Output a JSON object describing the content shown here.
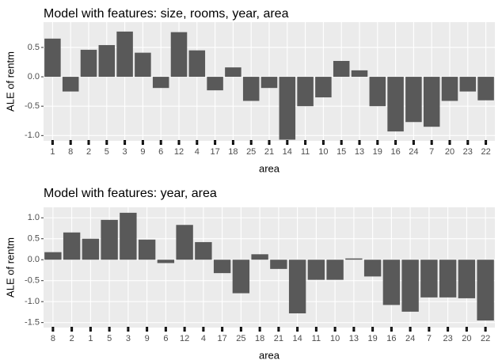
{
  "chart_data": [
    {
      "type": "bar",
      "title": "Model with features: size, rooms, year, area",
      "x_label": "area",
      "y_label": "ALE of rentm",
      "color": "#595959",
      "grid": true,
      "categories": [
        "1",
        "8",
        "2",
        "5",
        "3",
        "9",
        "6",
        "12",
        "4",
        "17",
        "18",
        "25",
        "21",
        "14",
        "11",
        "10",
        "15",
        "13",
        "19",
        "16",
        "24",
        "7",
        "20",
        "23",
        "22"
      ],
      "values": [
        0.65,
        -0.25,
        0.46,
        0.54,
        0.77,
        0.41,
        -0.19,
        0.76,
        0.45,
        -0.23,
        0.16,
        -0.41,
        -0.19,
        -1.07,
        -0.5,
        -0.35,
        0.27,
        0.11,
        -0.5,
        -0.93,
        -0.77,
        -0.85,
        -0.41,
        -0.25,
        -0.4
      ],
      "ylim": [
        -1.09,
        0.93
      ],
      "yticks": [
        {
          "value": -1,
          "label": "-1.0"
        },
        {
          "value": -0.5,
          "label": "-0.5"
        },
        {
          "value": 0,
          "label": "0.0"
        },
        {
          "value": 0.5,
          "label": "0.5"
        }
      ]
    },
    {
      "type": "bar",
      "title": "Model with features: year, area",
      "x_label": "area",
      "y_label": "ALE of rentm",
      "color": "#595959",
      "grid": true,
      "categories": [
        "8",
        "2",
        "1",
        "5",
        "3",
        "9",
        "6",
        "12",
        "4",
        "17",
        "25",
        "18",
        "21",
        "14",
        "11",
        "10",
        "13",
        "19",
        "16",
        "24",
        "7",
        "23",
        "20",
        "22"
      ],
      "values": [
        0.18,
        0.65,
        0.5,
        0.95,
        1.12,
        0.48,
        -0.08,
        0.83,
        0.42,
        -0.32,
        -0.8,
        0.13,
        -0.22,
        -1.28,
        -0.48,
        -0.48,
        0.03,
        -0.4,
        -1.08,
        -1.24,
        -0.9,
        -0.9,
        -0.92,
        -1.45
      ],
      "ylim": [
        -1.62,
        1.25
      ],
      "yticks": [
        {
          "value": -1.5,
          "label": "-1.5"
        },
        {
          "value": -1,
          "label": "-1.0"
        },
        {
          "value": -0.5,
          "label": "-0.5"
        },
        {
          "value": 0,
          "label": "0.0"
        },
        {
          "value": 0.5,
          "label": "0.5"
        },
        {
          "value": 1,
          "label": "1.0"
        }
      ]
    }
  ]
}
